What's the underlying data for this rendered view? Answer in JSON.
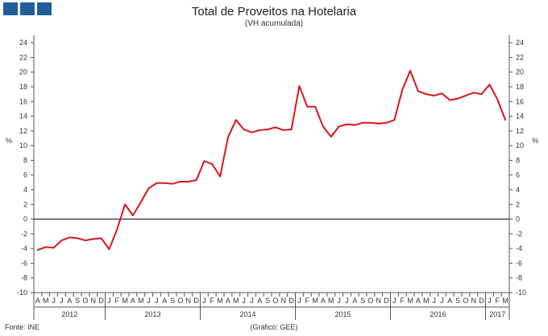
{
  "logo": {
    "icon": "ine-logo-icon",
    "color": "#1f5f9a"
  },
  "footer": {
    "source": "Fonte: INE",
    "credit": "(Gráfico: GEE)"
  },
  "chart_data": {
    "type": "line",
    "title": "Total de Proveitos na Hotelaria",
    "subtitle": "(VH acumulada)",
    "ylabel": "%",
    "ylim": [
      -10,
      25
    ],
    "yticks": [
      -10,
      -8,
      -6,
      -4,
      -2,
      0,
      2,
      4,
      6,
      8,
      10,
      12,
      14,
      16,
      18,
      20,
      22,
      24
    ],
    "grid": false,
    "line_color": "#d9141c",
    "categories": [
      "A",
      "M",
      "J",
      "J",
      "A",
      "S",
      "O",
      "N",
      "D",
      "J",
      "F",
      "M",
      "A",
      "M",
      "J",
      "J",
      "A",
      "S",
      "O",
      "N",
      "D",
      "J",
      "F",
      "M",
      "A",
      "M",
      "J",
      "J",
      "A",
      "S",
      "O",
      "N",
      "D",
      "J",
      "F",
      "M",
      "A",
      "M",
      "J",
      "J",
      "A",
      "S",
      "O",
      "N",
      "D",
      "J",
      "F",
      "M",
      "A",
      "M",
      "J",
      "J",
      "A",
      "S",
      "O",
      "N",
      "D",
      "J",
      "F",
      "M"
    ],
    "year_groups": [
      {
        "label": "2012",
        "start": 0,
        "count": 9
      },
      {
        "label": "2013",
        "start": 9,
        "count": 12
      },
      {
        "label": "2014",
        "start": 21,
        "count": 12
      },
      {
        "label": "2015",
        "start": 33,
        "count": 12
      },
      {
        "label": "2016",
        "start": 45,
        "count": 12
      },
      {
        "label": "2017",
        "start": 57,
        "count": 3
      }
    ],
    "series": [
      {
        "values": [
          -4.2,
          -3.8,
          -3.9,
          -2.9,
          -2.5,
          -2.6,
          -2.9,
          -2.7,
          -2.6,
          -4.1,
          -1.4,
          2.0,
          0.5,
          2.3,
          4.2,
          4.9,
          4.9,
          4.8,
          5.1,
          5.1,
          5.3,
          7.9,
          7.5,
          5.8,
          11.1,
          13.5,
          12.2,
          11.8,
          12.1,
          12.2,
          12.5,
          12.1,
          12.2,
          18.1,
          15.3,
          15.3,
          12.6,
          11.2,
          12.6,
          12.9,
          12.8,
          13.1,
          13.1,
          13.0,
          13.1,
          13.5,
          17.6,
          20.2,
          17.4,
          17.0,
          16.8,
          17.1,
          16.2,
          16.4,
          16.8,
          17.2,
          17.0,
          18.3,
          16.3,
          13.5
        ]
      }
    ]
  }
}
